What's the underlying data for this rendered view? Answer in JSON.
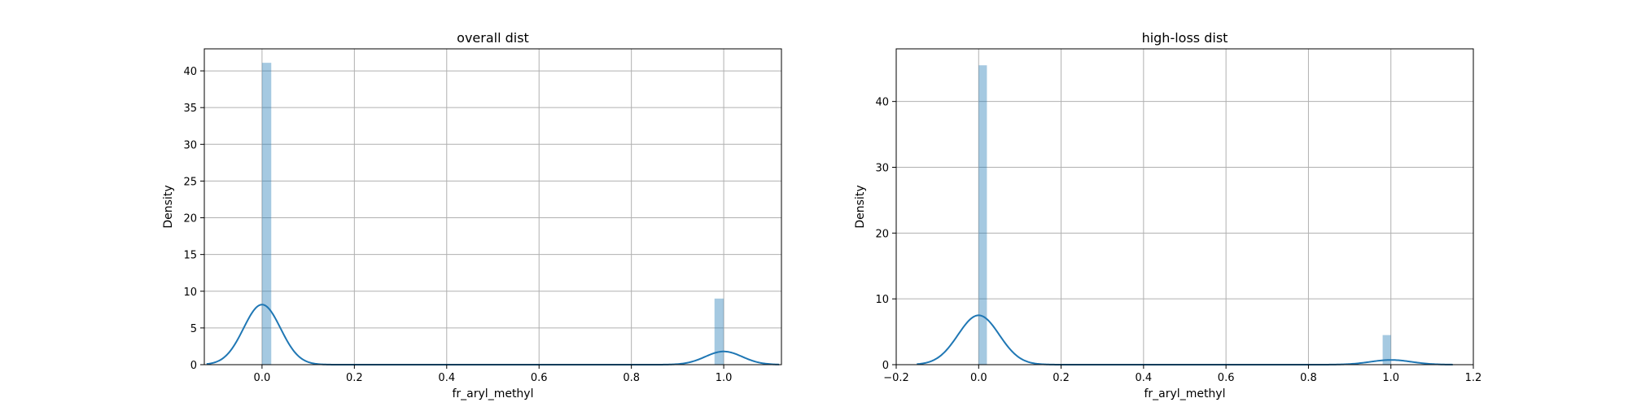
{
  "chart_data": [
    {
      "type": "histogram+kde",
      "title": "overall dist",
      "xlabel": "fr_aryl_methyl",
      "ylabel": "Density",
      "xlim": [
        -0.125,
        1.125
      ],
      "ylim": [
        0,
        43
      ],
      "xticks": [
        0.0,
        0.2,
        0.4,
        0.6,
        0.8,
        1.0
      ],
      "xtick_labels": [
        "0.0",
        "0.2",
        "0.4",
        "0.6",
        "0.8",
        "1.0"
      ],
      "yticks": [
        0,
        5,
        10,
        15,
        20,
        25,
        30,
        35,
        40
      ],
      "ytick_labels": [
        "0",
        "5",
        "10",
        "15",
        "20",
        "25",
        "30",
        "35",
        "40"
      ],
      "grid": true,
      "bins": [
        {
          "x0": 0.0,
          "x1": 0.02,
          "density": 41.1
        },
        {
          "x0": 0.98,
          "x1": 1.0,
          "density": 9.0
        }
      ],
      "kde": {
        "components": [
          {
            "mu": 0.0,
            "sigma": 0.04,
            "weight": 0.82
          },
          {
            "mu": 1.0,
            "sigma": 0.04,
            "weight": 0.18
          }
        ],
        "x_range": [
          -0.12,
          1.12
        ]
      }
    },
    {
      "type": "histogram+kde",
      "title": "high-loss dist",
      "xlabel": "fr_aryl_methyl",
      "ylabel": "Density",
      "xlim": [
        -0.2,
        1.2
      ],
      "ylim": [
        0,
        48
      ],
      "xticks": [
        -0.2,
        0.0,
        0.2,
        0.4,
        0.6,
        0.8,
        1.0,
        1.2
      ],
      "xtick_labels": [
        "−0.2",
        "0.0",
        "0.2",
        "0.4",
        "0.6",
        "0.8",
        "1.0",
        "1.2"
      ],
      "yticks": [
        0,
        10,
        20,
        30,
        40
      ],
      "ytick_labels": [
        "0",
        "10",
        "20",
        "30",
        "40"
      ],
      "grid": true,
      "bins": [
        {
          "x0": 0.0,
          "x1": 0.02,
          "density": 45.5
        },
        {
          "x0": 0.98,
          "x1": 1.0,
          "density": 4.5
        }
      ],
      "kde": {
        "components": [
          {
            "mu": 0.0,
            "sigma": 0.05,
            "weight": 0.94
          },
          {
            "mu": 1.0,
            "sigma": 0.05,
            "weight": 0.09
          }
        ],
        "x_range": [
          -0.15,
          1.15
        ]
      }
    }
  ]
}
